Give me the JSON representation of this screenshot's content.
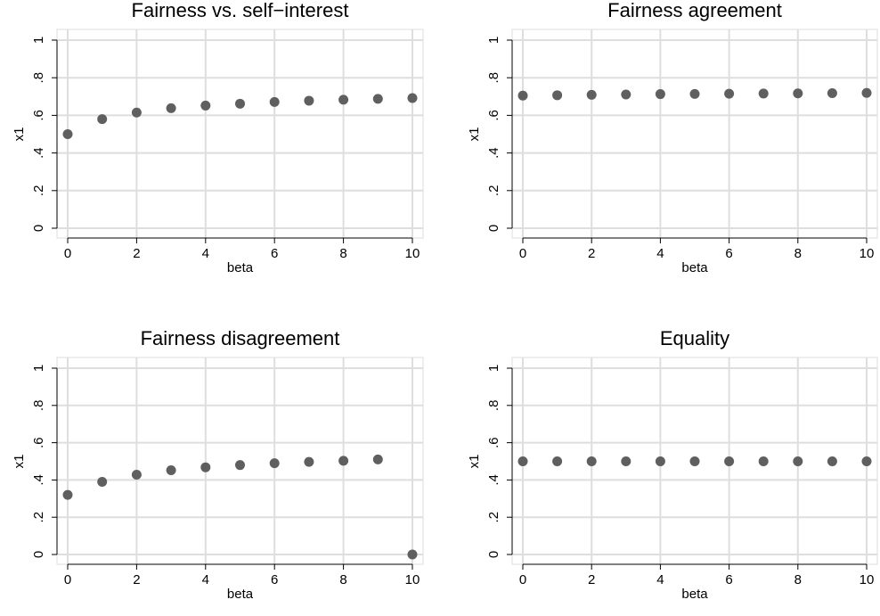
{
  "chart_data": [
    {
      "type": "scatter",
      "title": "Fairness vs. self−interest",
      "xlabel": "beta",
      "ylabel": "x1",
      "xlim": [
        0,
        10
      ],
      "ylim": [
        0,
        1
      ],
      "x_ticks": [
        "0",
        "2",
        "4",
        "6",
        "8",
        "10"
      ],
      "y_ticks": [
        "0",
        ".2",
        ".4",
        ".6",
        ".8",
        "1"
      ],
      "grid": true,
      "marker_color": "#5f5f5f",
      "x": [
        0,
        1,
        2,
        3,
        4,
        5,
        6,
        7,
        8,
        9,
        10
      ],
      "y": [
        0.5,
        0.58,
        0.615,
        0.638,
        0.652,
        0.662,
        0.671,
        0.678,
        0.683,
        0.688,
        0.692
      ]
    },
    {
      "type": "scatter",
      "title": "Fairness agreement",
      "xlabel": "beta",
      "ylabel": "x1",
      "xlim": [
        0,
        10
      ],
      "ylim": [
        0,
        1
      ],
      "x_ticks": [
        "0",
        "2",
        "4",
        "6",
        "8",
        "10"
      ],
      "y_ticks": [
        "0",
        ".2",
        ".4",
        ".6",
        ".8",
        "1"
      ],
      "grid": true,
      "marker_color": "#5f5f5f",
      "x": [
        0,
        1,
        2,
        3,
        4,
        5,
        6,
        7,
        8,
        9,
        10
      ],
      "y": [
        0.705,
        0.707,
        0.709,
        0.711,
        0.713,
        0.714,
        0.715,
        0.716,
        0.717,
        0.718,
        0.719
      ]
    },
    {
      "type": "scatter",
      "title": "Fairness disagreement",
      "xlabel": "beta",
      "ylabel": "x1",
      "xlim": [
        0,
        10
      ],
      "ylim": [
        0,
        1
      ],
      "x_ticks": [
        "0",
        "2",
        "4",
        "6",
        "8",
        "10"
      ],
      "y_ticks": [
        "0",
        ".2",
        ".4",
        ".6",
        ".8",
        "1"
      ],
      "grid": true,
      "marker_color": "#5f5f5f",
      "x": [
        0,
        1,
        2,
        3,
        4,
        5,
        6,
        7,
        8,
        9,
        10
      ],
      "y": [
        0.32,
        0.39,
        0.428,
        0.452,
        0.468,
        0.48,
        0.49,
        0.497,
        0.503,
        0.51,
        0.0
      ]
    },
    {
      "type": "scatter",
      "title": "Equality",
      "xlabel": "beta",
      "ylabel": "x1",
      "xlim": [
        0,
        10
      ],
      "ylim": [
        0,
        1
      ],
      "x_ticks": [
        "0",
        "2",
        "4",
        "6",
        "8",
        "10"
      ],
      "y_ticks": [
        "0",
        ".2",
        ".4",
        ".6",
        ".8",
        "1"
      ],
      "grid": true,
      "marker_color": "#5f5f5f",
      "x": [
        0,
        1,
        2,
        3,
        4,
        5,
        6,
        7,
        8,
        9,
        10
      ],
      "y": [
        0.5,
        0.5,
        0.5,
        0.5,
        0.5,
        0.5,
        0.5,
        0.5,
        0.5,
        0.5,
        0.5
      ]
    }
  ]
}
